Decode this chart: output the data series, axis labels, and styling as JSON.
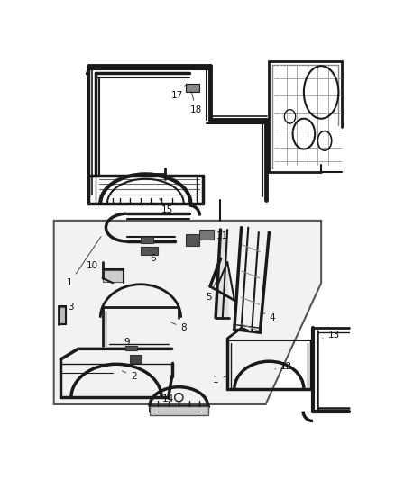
{
  "bg": "#ffffff",
  "lc": "#1a1a1a",
  "lc2": "#333333",
  "fig_w": 4.38,
  "fig_h": 5.33,
  "dpi": 100,
  "label_fs": 7.5,
  "label_color": "#111111",
  "leader_color": "#444444"
}
